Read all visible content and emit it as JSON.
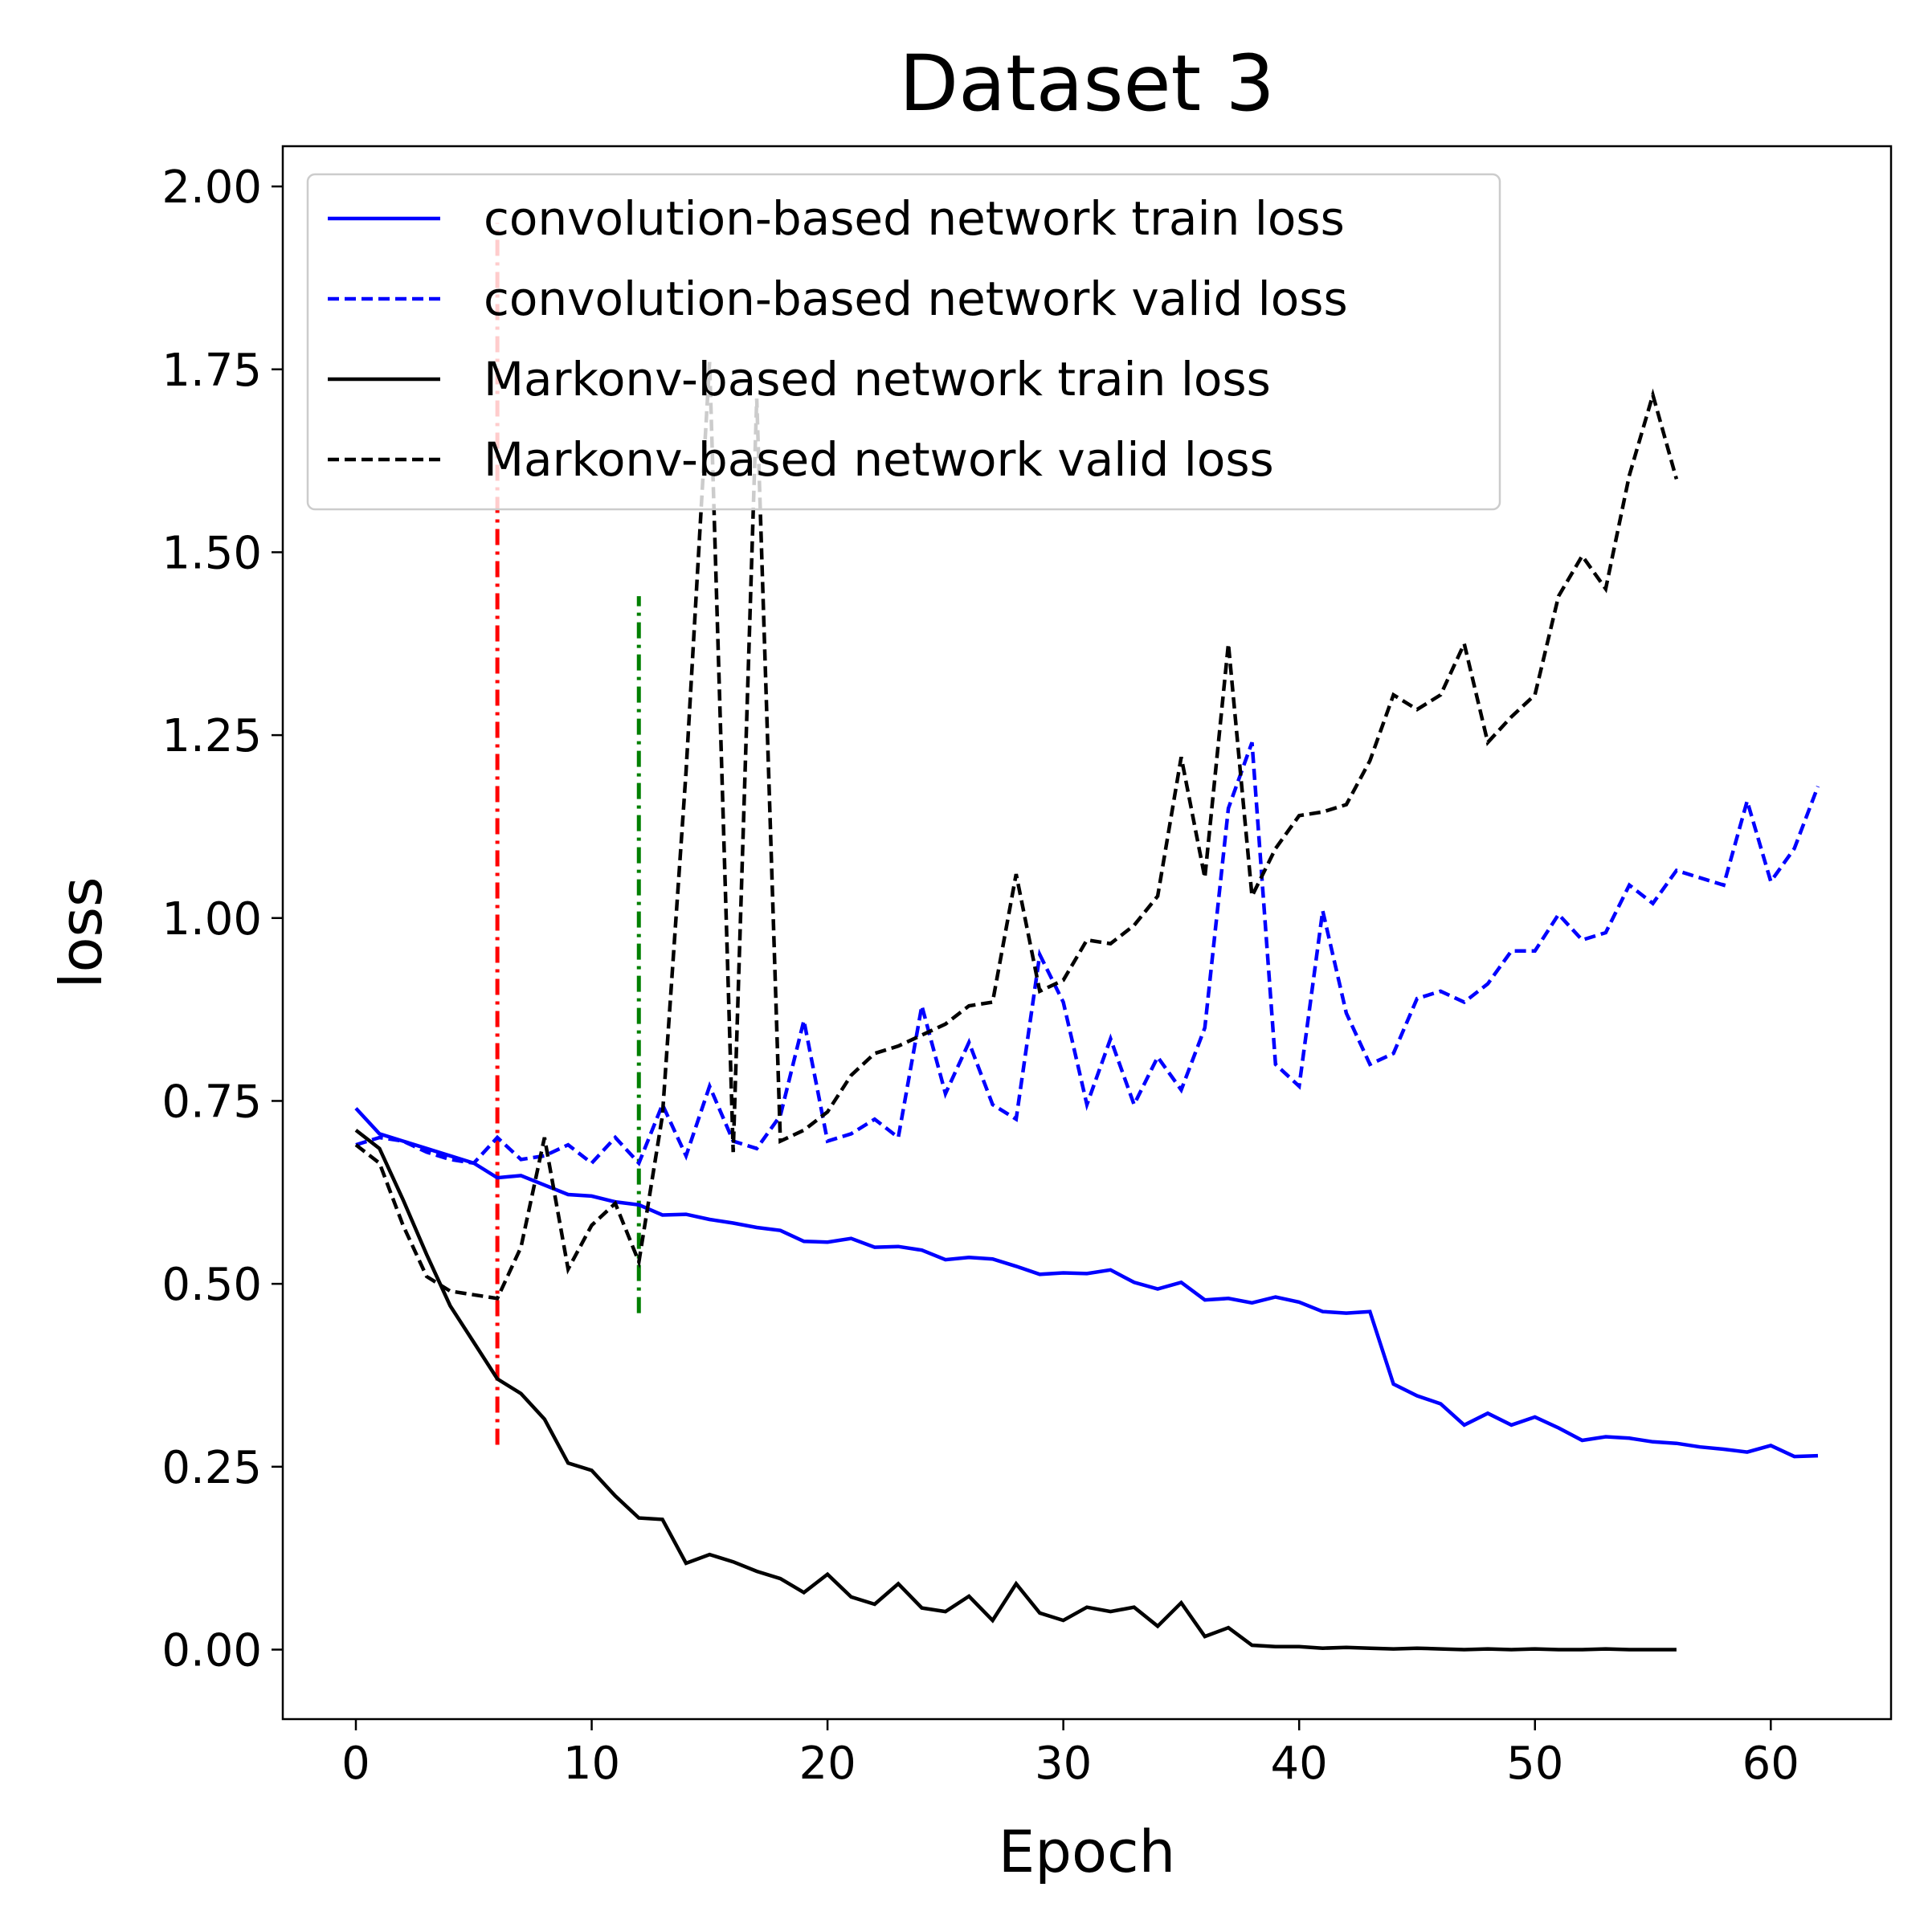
{
  "chart_data": {
    "type": "line",
    "title": "Dataset 3",
    "xlabel": "Epoch",
    "ylabel": "loss",
    "xlim": [
      -3.1,
      65.1
    ],
    "ylim": [
      -0.095,
      2.055
    ],
    "xticks": [
      0,
      10,
      20,
      30,
      40,
      50,
      60
    ],
    "xtick_labels": [
      "0",
      "10",
      "20",
      "30",
      "40",
      "50",
      "60"
    ],
    "yticks": [
      0.0,
      0.25,
      0.5,
      0.75,
      1.0,
      1.25,
      1.5,
      1.75,
      2.0
    ],
    "ytick_labels": [
      "0.00",
      "0.25",
      "0.50",
      "0.75",
      "1.00",
      "1.25",
      "1.50",
      "1.75",
      "2.00"
    ],
    "grid": false,
    "legend_position": "upper-left",
    "series": [
      {
        "name": "convolution-based network train loss",
        "color": "#0000ff",
        "style": "solid",
        "x_start": 0,
        "values": [
          0.74,
          0.705,
          0.695,
          0.685,
          0.675,
          0.665,
          0.645,
          0.648,
          0.635,
          0.622,
          0.62,
          0.612,
          0.608,
          0.594,
          0.595,
          0.588,
          0.583,
          0.577,
          0.573,
          0.558,
          0.557,
          0.562,
          0.55,
          0.551,
          0.546,
          0.533,
          0.536,
          0.534,
          0.524,
          0.513,
          0.515,
          0.514,
          0.519,
          0.502,
          0.493,
          0.502,
          0.478,
          0.48,
          0.474,
          0.482,
          0.475,
          0.462,
          0.46,
          0.462,
          0.363,
          0.347,
          0.336,
          0.307,
          0.323,
          0.307,
          0.318,
          0.303,
          0.286,
          0.291,
          0.289,
          0.284,
          0.282,
          0.277,
          0.274,
          0.27,
          0.279,
          0.264,
          0.265
        ]
      },
      {
        "name": "convolution-based network valid loss",
        "color": "#0000ff",
        "style": "dashed",
        "x_start": 0,
        "values": [
          0.69,
          0.7,
          0.695,
          0.68,
          0.67,
          0.665,
          0.7,
          0.67,
          0.675,
          0.69,
          0.665,
          0.7,
          0.665,
          0.745,
          0.675,
          0.77,
          0.695,
          0.685,
          0.73,
          0.86,
          0.695,
          0.705,
          0.725,
          0.7,
          0.88,
          0.76,
          0.83,
          0.745,
          0.725,
          0.95,
          0.885,
          0.745,
          0.835,
          0.745,
          0.81,
          0.765,
          0.85,
          1.15,
          1.24,
          0.8,
          0.77,
          1.01,
          0.87,
          0.8,
          0.815,
          0.89,
          0.9,
          0.885,
          0.91,
          0.955,
          0.955,
          1.005,
          0.97,
          0.98,
          1.045,
          1.02,
          1.065,
          1.055,
          1.045,
          1.16,
          1.05,
          1.095,
          1.18
        ]
      },
      {
        "name": "Markonv-based network train loss",
        "color": "#000000",
        "style": "solid",
        "x_start": 0,
        "values": [
          0.71,
          0.685,
          0.615,
          0.54,
          0.47,
          0.42,
          0.37,
          0.35,
          0.315,
          0.255,
          0.245,
          0.21,
          0.18,
          0.178,
          0.118,
          0.13,
          0.12,
          0.107,
          0.097,
          0.078,
          0.103,
          0.072,
          0.062,
          0.09,
          0.057,
          0.052,
          0.073,
          0.04,
          0.09,
          0.05,
          0.04,
          0.058,
          0.052,
          0.058,
          0.032,
          0.064,
          0.018,
          0.03,
          0.006,
          0.004,
          0.004,
          0.002,
          0.003,
          0.002,
          0.001,
          0.002,
          0.001,
          0.0,
          0.001,
          0.0,
          0.001,
          0.0,
          0.0,
          0.001,
          0.0,
          0.0,
          0.0
        ]
      },
      {
        "name": "Markonv-based network valid loss",
        "color": "#000000",
        "style": "dashed",
        "x_start": 0,
        "values": [
          0.69,
          0.665,
          0.58,
          0.51,
          0.49,
          0.485,
          0.48,
          0.55,
          0.7,
          0.52,
          0.58,
          0.61,
          0.53,
          0.73,
          1.2,
          1.76,
          0.68,
          1.71,
          0.695,
          0.71,
          0.735,
          0.785,
          0.815,
          0.825,
          0.84,
          0.855,
          0.88,
          0.885,
          1.06,
          0.9,
          0.915,
          0.97,
          0.965,
          0.99,
          1.03,
          1.22,
          1.055,
          1.375,
          1.03,
          1.095,
          1.14,
          1.145,
          1.155,
          1.215,
          1.305,
          1.285,
          1.305,
          1.375,
          1.24,
          1.275,
          1.305,
          1.44,
          1.495,
          1.45,
          1.605,
          1.715,
          1.6
        ]
      }
    ],
    "vlines": [
      {
        "x": 6,
        "y_range": [
          0.28,
          1.95
        ],
        "color": "#ff0000",
        "style": "dashdot"
      },
      {
        "x": 12,
        "y_range": [
          0.46,
          1.44
        ],
        "color": "#007f00",
        "style": "dashdot"
      }
    ]
  }
}
